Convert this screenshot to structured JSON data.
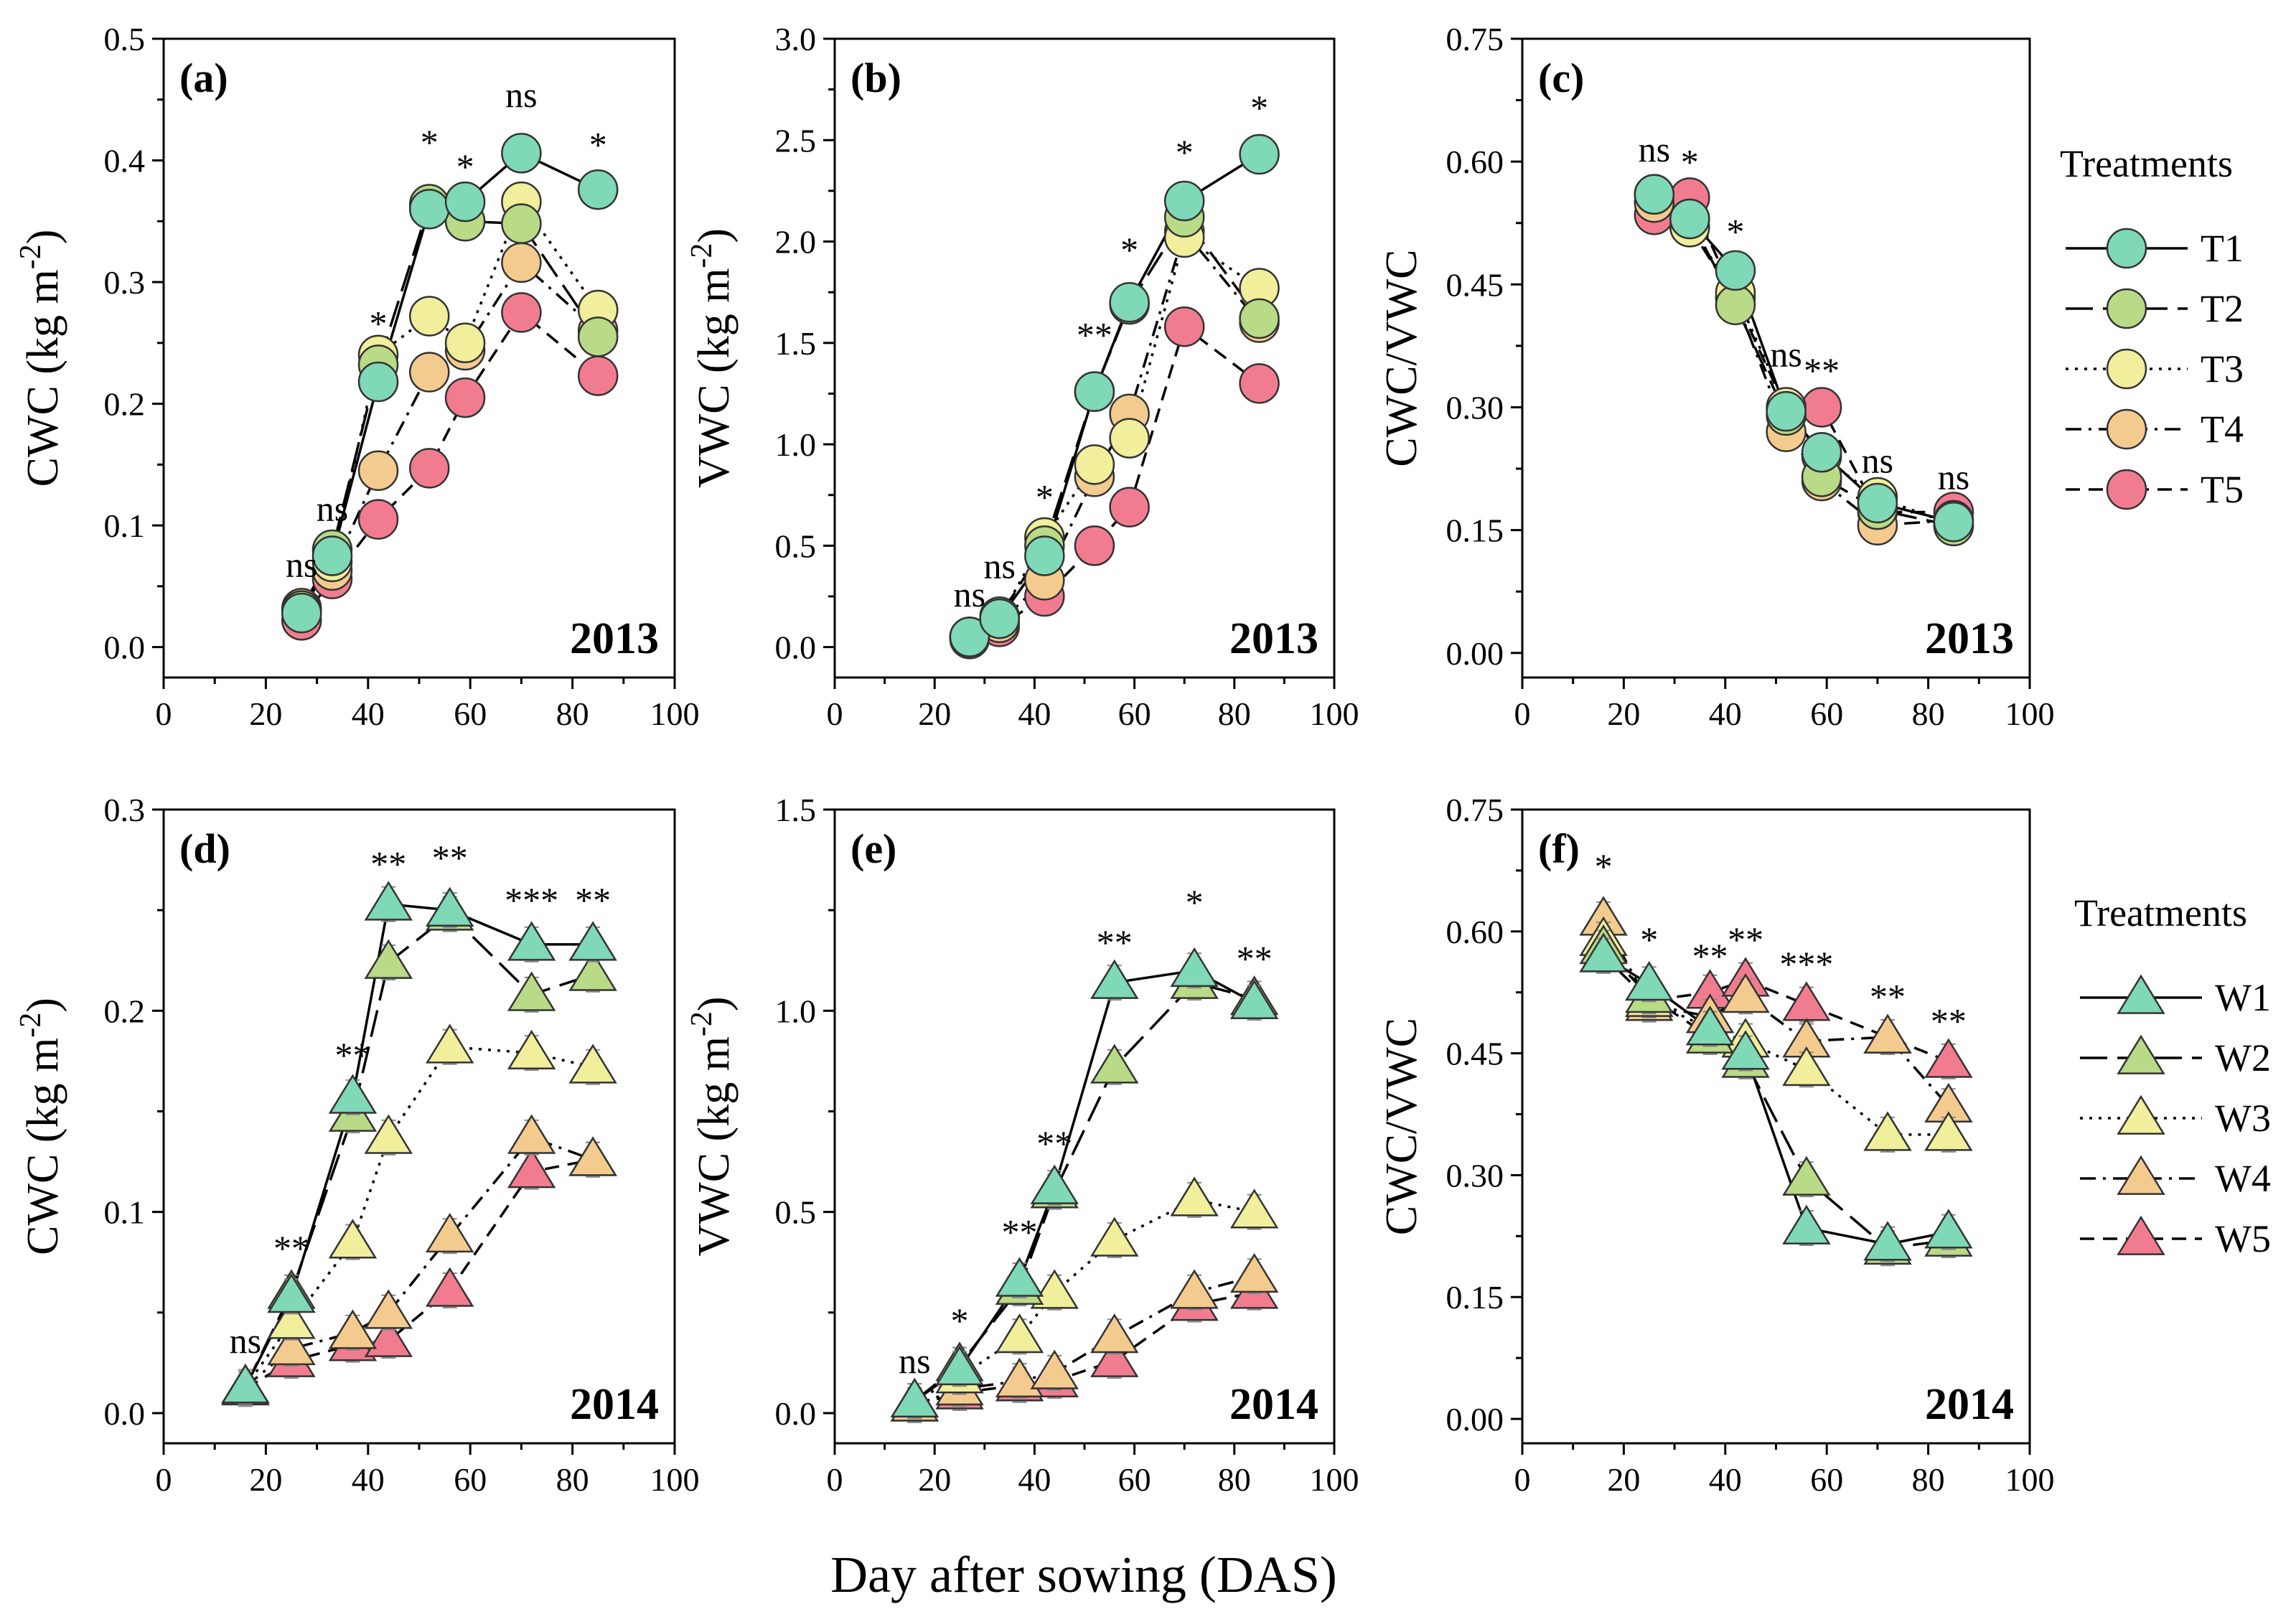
{
  "figure": {
    "xlabel": "Day after sowing (DAS)",
    "legend_markers": "marker-line legend swatches"
  },
  "styles": {
    "T1": {
      "color": "#7fd8b6",
      "dash": "solid"
    },
    "T2": {
      "color": "#b9da86",
      "dash": "longdash"
    },
    "T3": {
      "color": "#f1ee9c",
      "dash": "dot"
    },
    "T4": {
      "color": "#f4cb8f",
      "dash": "dashdot"
    },
    "T5": {
      "color": "#f27c8f",
      "dash": "dash"
    },
    "W1": {
      "color": "#7fd8b6",
      "dash": "solid"
    },
    "W2": {
      "color": "#b9da86",
      "dash": "longdash"
    },
    "W3": {
      "color": "#f1ee9c",
      "dash": "dot"
    },
    "W4": {
      "color": "#f4cb8f",
      "dash": "dashdot"
    },
    "W5": {
      "color": "#f27c8f",
      "dash": "dash"
    }
  },
  "legends": [
    {
      "title": "Treatments",
      "marker": "circle",
      "items": [
        "T1",
        "T2",
        "T3",
        "T4",
        "T5"
      ]
    },
    {
      "title": "Treatments",
      "marker": "triangle",
      "items": [
        "W1",
        "W2",
        "W3",
        "W4",
        "W5"
      ]
    }
  ],
  "chart_data": [
    {
      "type": "line",
      "panel": "(a)",
      "year": "2013",
      "marker": "circle",
      "ylabel_main": "CWC (kg m",
      "ylabel_sup": "-2",
      "ylabel_end": ")",
      "xlim": [
        0,
        100
      ],
      "xticks": [
        "0",
        "20",
        "40",
        "60",
        "80",
        "100"
      ],
      "ylim": [
        -0.025,
        0.5
      ],
      "yticks": [
        "0.0",
        "0.1",
        "0.2",
        "0.3",
        "0.4",
        "0.5"
      ],
      "x": [
        27,
        33,
        42,
        52,
        59,
        70,
        85
      ],
      "series": [
        {
          "name": "T1",
          "values": [
            0.028,
            0.075,
            0.218,
            0.36,
            0.366,
            0.406,
            0.376
          ]
        },
        {
          "name": "T2",
          "values": [
            0.03,
            0.08,
            0.232,
            0.364,
            0.35,
            0.348,
            0.255
          ]
        },
        {
          "name": "T3",
          "values": [
            0.03,
            0.07,
            0.24,
            0.272,
            0.25,
            0.366,
            0.277
          ]
        },
        {
          "name": "T4",
          "values": [
            0.032,
            0.063,
            0.145,
            0.226,
            0.244,
            0.316,
            0.26
          ]
        },
        {
          "name": "T5",
          "values": [
            0.022,
            0.056,
            0.105,
            0.147,
            0.205,
            0.275,
            0.223
          ]
        }
      ],
      "annotations": [
        {
          "x": 27,
          "y": 0.058,
          "text": "ns"
        },
        {
          "x": 33,
          "y": 0.104,
          "text": "ns"
        },
        {
          "x": 42,
          "y": 0.256,
          "text": "*"
        },
        {
          "x": 52,
          "y": 0.405,
          "text": "*"
        },
        {
          "x": 59,
          "y": 0.385,
          "text": "*"
        },
        {
          "x": 70,
          "y": 0.444,
          "text": "ns"
        },
        {
          "x": 85,
          "y": 0.403,
          "text": "*"
        }
      ]
    },
    {
      "type": "line",
      "panel": "(b)",
      "year": "2013",
      "marker": "circle",
      "ylabel_main": "VWC (kg m",
      "ylabel_sup": "-2",
      "ylabel_end": ")",
      "xlim": [
        0,
        100
      ],
      "xticks": [
        "0",
        "20",
        "40",
        "60",
        "80",
        "100"
      ],
      "ylim": [
        -0.15,
        3.0
      ],
      "yticks": [
        "0.0",
        "0.5",
        "1.0",
        "1.5",
        "2.0",
        "2.5",
        "3.0"
      ],
      "x": [
        27,
        33,
        42,
        52,
        59,
        70,
        85
      ],
      "series": [
        {
          "name": "T1",
          "values": [
            0.05,
            0.14,
            0.45,
            1.26,
            1.7,
            2.2,
            2.43
          ]
        },
        {
          "name": "T2",
          "values": [
            0.05,
            0.15,
            0.5,
            1.26,
            1.69,
            2.12,
            1.62
          ]
        },
        {
          "name": "T3",
          "values": [
            0.05,
            0.14,
            0.54,
            0.9,
            1.03,
            2.02,
            1.77
          ]
        },
        {
          "name": "T4",
          "values": [
            0.05,
            0.12,
            0.33,
            0.84,
            1.15,
            2.05,
            1.6
          ]
        },
        {
          "name": "T5",
          "values": [
            0.04,
            0.1,
            0.25,
            0.5,
            0.69,
            1.58,
            1.3
          ]
        }
      ],
      "annotations": [
        {
          "x": 27,
          "y": 0.2,
          "text": "ns"
        },
        {
          "x": 33,
          "y": 0.34,
          "text": "ns"
        },
        {
          "x": 42,
          "y": 0.68,
          "text": "*"
        },
        {
          "x": 52,
          "y": 1.48,
          "text": "**"
        },
        {
          "x": 59,
          "y": 1.9,
          "text": "*"
        },
        {
          "x": 70,
          "y": 2.38,
          "text": "*"
        },
        {
          "x": 85,
          "y": 2.6,
          "text": "*"
        }
      ]
    },
    {
      "type": "line",
      "panel": "(c)",
      "year": "2013",
      "marker": "circle",
      "ylabel_main": "CWC/VWC",
      "ylabel_sup": "",
      "ylabel_end": "",
      "xlim": [
        0,
        100
      ],
      "xticks": [
        "0",
        "20",
        "40",
        "60",
        "80",
        "100"
      ],
      "ylim": [
        -0.03,
        0.75
      ],
      "yticks": [
        "0.00",
        "0.15",
        "0.30",
        "0.45",
        "0.60",
        "0.75"
      ],
      "x": [
        26,
        33,
        42,
        52,
        59,
        70,
        85
      ],
      "series": [
        {
          "name": "T1",
          "values": [
            0.56,
            0.53,
            0.467,
            0.295,
            0.245,
            0.183,
            0.16
          ]
        },
        {
          "name": "T2",
          "values": [
            0.56,
            0.53,
            0.425,
            0.29,
            0.215,
            0.175,
            0.155
          ]
        },
        {
          "name": "T3",
          "values": [
            0.56,
            0.52,
            0.44,
            0.3,
            0.24,
            0.19,
            0.156
          ]
        },
        {
          "name": "T4",
          "values": [
            0.55,
            0.52,
            0.432,
            0.27,
            0.21,
            0.156,
            0.162
          ]
        },
        {
          "name": "T5",
          "values": [
            0.535,
            0.556,
            0.434,
            0.298,
            0.3,
            0.172,
            0.172
          ]
        }
      ],
      "annotations": [
        {
          "x": 26,
          "y": 0.6,
          "text": "ns"
        },
        {
          "x": 33,
          "y": 0.585,
          "text": "*"
        },
        {
          "x": 42,
          "y": 0.5,
          "text": "*"
        },
        {
          "x": 52,
          "y": 0.35,
          "text": "ns"
        },
        {
          "x": 59,
          "y": 0.33,
          "text": "**"
        },
        {
          "x": 70,
          "y": 0.22,
          "text": "ns"
        },
        {
          "x": 85,
          "y": 0.2,
          "text": "ns"
        }
      ]
    },
    {
      "type": "line",
      "panel": "(d)",
      "year": "2014",
      "marker": "triangle",
      "ylabel_main": "CWC (kg m",
      "ylabel_sup": "-2",
      "ylabel_end": ")",
      "xlim": [
        0,
        100
      ],
      "xticks": [
        "0",
        "20",
        "40",
        "60",
        "80",
        "100"
      ],
      "ylim": [
        -0.015,
        0.3
      ],
      "yticks": [
        "0.0",
        "0.1",
        "0.2",
        "0.3"
      ],
      "x": [
        16,
        25,
        37,
        44,
        56,
        72,
        84
      ],
      "series": [
        {
          "name": "W1",
          "values": [
            0.013,
            0.058,
            0.157,
            0.253,
            0.25,
            0.233,
            0.233
          ]
        },
        {
          "name": "W2",
          "values": [
            0.013,
            0.06,
            0.148,
            0.224,
            0.248,
            0.208,
            0.218
          ]
        },
        {
          "name": "W3",
          "values": [
            0.013,
            0.045,
            0.085,
            0.137,
            0.182,
            0.179,
            0.172
          ]
        },
        {
          "name": "W4",
          "values": [
            0.013,
            0.032,
            0.04,
            0.05,
            0.088,
            0.137,
            0.126
          ]
        },
        {
          "name": "W5",
          "values": [
            0.012,
            0.026,
            0.034,
            0.036,
            0.061,
            0.12,
            0.126
          ]
        }
      ],
      "annotations": [
        {
          "x": 16,
          "y": 0.03,
          "text": "ns"
        },
        {
          "x": 25,
          "y": 0.076,
          "text": "**"
        },
        {
          "x": 37,
          "y": 0.172,
          "text": "**"
        },
        {
          "x": 44,
          "y": 0.267,
          "text": "**"
        },
        {
          "x": 56,
          "y": 0.27,
          "text": "**"
        },
        {
          "x": 72,
          "y": 0.249,
          "text": "***"
        },
        {
          "x": 84,
          "y": 0.249,
          "text": "**"
        }
      ]
    },
    {
      "type": "line",
      "panel": "(e)",
      "year": "2014",
      "marker": "triangle",
      "ylabel_main": "VWC (kg m",
      "ylabel_sup": "-2",
      "ylabel_end": ")",
      "xlim": [
        0,
        100
      ],
      "xticks": [
        "0",
        "20",
        "40",
        "60",
        "80",
        "100"
      ],
      "ylim": [
        -0.075,
        1.5
      ],
      "yticks": [
        "0.0",
        "0.5",
        "1.0",
        "1.5"
      ],
      "x": [
        16,
        25,
        37,
        44,
        56,
        72,
        84
      ],
      "series": [
        {
          "name": "W1",
          "values": [
            0.03,
            0.11,
            0.33,
            0.56,
            1.07,
            1.1,
            1.02
          ]
        },
        {
          "name": "W2",
          "values": [
            0.03,
            0.12,
            0.31,
            0.55,
            0.86,
            1.07,
            1.03
          ]
        },
        {
          "name": "W3",
          "values": [
            0.03,
            0.09,
            0.19,
            0.3,
            0.43,
            0.53,
            0.5
          ]
        },
        {
          "name": "W4",
          "values": [
            0.02,
            0.06,
            0.08,
            0.1,
            0.19,
            0.3,
            0.34
          ]
        },
        {
          "name": "W5",
          "values": [
            0.02,
            0.05,
            0.07,
            0.08,
            0.13,
            0.27,
            0.3
          ]
        }
      ],
      "annotations": [
        {
          "x": 16,
          "y": 0.1,
          "text": "ns"
        },
        {
          "x": 25,
          "y": 0.2,
          "text": "*"
        },
        {
          "x": 37,
          "y": 0.42,
          "text": "**"
        },
        {
          "x": 44,
          "y": 0.64,
          "text": "**"
        },
        {
          "x": 56,
          "y": 1.14,
          "text": "**"
        },
        {
          "x": 72,
          "y": 1.24,
          "text": "*"
        },
        {
          "x": 84,
          "y": 1.1,
          "text": "**"
        }
      ]
    },
    {
      "type": "line",
      "panel": "(f)",
      "year": "2014",
      "marker": "triangle",
      "ylabel_main": "CWC/VWC",
      "ylabel_sup": "",
      "ylabel_end": "",
      "xlim": [
        0,
        100
      ],
      "xticks": [
        "0",
        "20",
        "40",
        "60",
        "80",
        "100"
      ],
      "ylim": [
        -0.03,
        0.75
      ],
      "yticks": [
        "0.00",
        "0.15",
        "0.30",
        "0.45",
        "0.60",
        "0.75"
      ],
      "x": [
        16,
        25,
        37,
        44,
        56,
        72,
        84
      ],
      "series": [
        {
          "name": "W1",
          "values": [
            0.57,
            0.535,
            0.48,
            0.45,
            0.235,
            0.215,
            0.23
          ]
        },
        {
          "name": "W2",
          "values": [
            0.58,
            0.52,
            0.47,
            0.44,
            0.295,
            0.21,
            0.22
          ]
        },
        {
          "name": "W3",
          "values": [
            0.59,
            0.515,
            0.48,
            0.465,
            0.43,
            0.35,
            0.35
          ]
        },
        {
          "name": "W4",
          "values": [
            0.615,
            0.51,
            0.495,
            0.52,
            0.465,
            0.47,
            0.385
          ]
        },
        {
          "name": "W5",
          "values": [
            0.57,
            0.515,
            0.525,
            0.54,
            0.51,
            0.47,
            0.44
          ]
        }
      ],
      "annotations": [
        {
          "x": 16,
          "y": 0.665,
          "text": "*"
        },
        {
          "x": 25,
          "y": 0.575,
          "text": "*"
        },
        {
          "x": 37,
          "y": 0.555,
          "text": "**"
        },
        {
          "x": 44,
          "y": 0.575,
          "text": "**"
        },
        {
          "x": 56,
          "y": 0.545,
          "text": "***"
        },
        {
          "x": 72,
          "y": 0.505,
          "text": "**"
        },
        {
          "x": 84,
          "y": 0.475,
          "text": "**"
        }
      ]
    }
  ]
}
